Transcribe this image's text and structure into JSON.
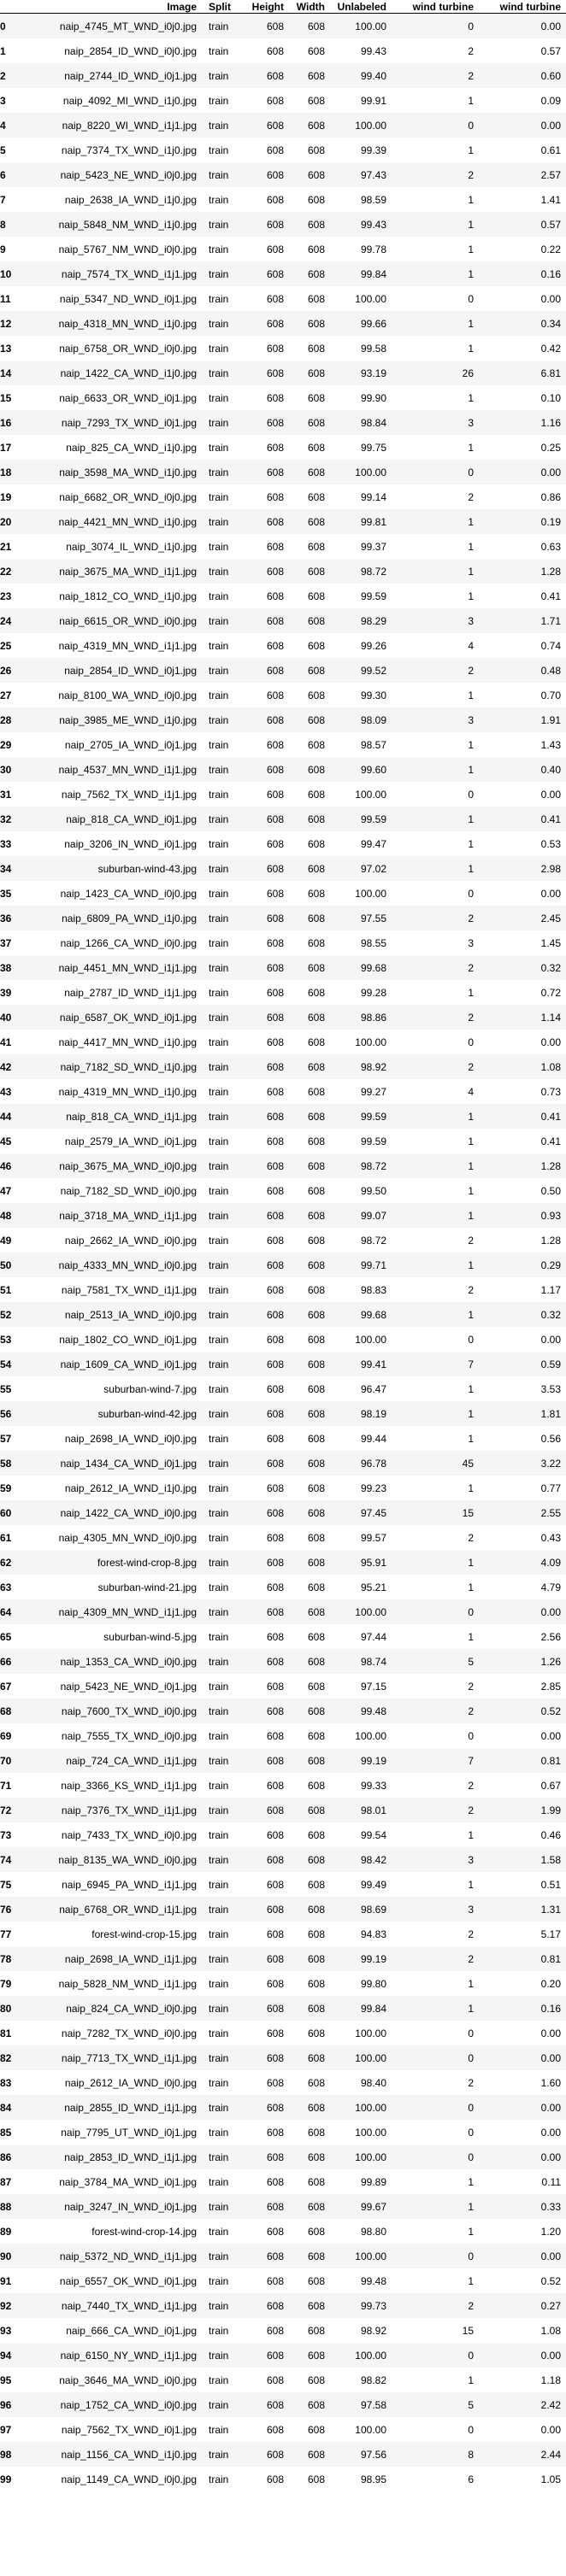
{
  "columns": [
    "",
    "Image",
    "Split",
    "Height",
    "Width",
    "Unlabeled",
    "wind turbine",
    "wind turbine"
  ],
  "rows": [
    [
      "0",
      "naip_4745_MT_WND_i0j0.jpg",
      "train",
      "608",
      "608",
      "100.00",
      "0",
      "0.00"
    ],
    [
      "1",
      "naip_2854_ID_WND_i0j0.jpg",
      "train",
      "608",
      "608",
      "99.43",
      "2",
      "0.57"
    ],
    [
      "2",
      "naip_2744_ID_WND_i0j1.jpg",
      "train",
      "608",
      "608",
      "99.40",
      "2",
      "0.60"
    ],
    [
      "3",
      "naip_4092_MI_WND_i1j0.jpg",
      "train",
      "608",
      "608",
      "99.91",
      "1",
      "0.09"
    ],
    [
      "4",
      "naip_8220_WI_WND_i1j1.jpg",
      "train",
      "608",
      "608",
      "100.00",
      "0",
      "0.00"
    ],
    [
      "5",
      "naip_7374_TX_WND_i1j0.jpg",
      "train",
      "608",
      "608",
      "99.39",
      "1",
      "0.61"
    ],
    [
      "6",
      "naip_5423_NE_WND_i0j0.jpg",
      "train",
      "608",
      "608",
      "97.43",
      "2",
      "2.57"
    ],
    [
      "7",
      "naip_2638_IA_WND_i1j0.jpg",
      "train",
      "608",
      "608",
      "98.59",
      "1",
      "1.41"
    ],
    [
      "8",
      "naip_5848_NM_WND_i1j0.jpg",
      "train",
      "608",
      "608",
      "99.43",
      "1",
      "0.57"
    ],
    [
      "9",
      "naip_5767_NM_WND_i0j0.jpg",
      "train",
      "608",
      "608",
      "99.78",
      "1",
      "0.22"
    ],
    [
      "10",
      "naip_7574_TX_WND_i1j1.jpg",
      "train",
      "608",
      "608",
      "99.84",
      "1",
      "0.16"
    ],
    [
      "11",
      "naip_5347_ND_WND_i0j1.jpg",
      "train",
      "608",
      "608",
      "100.00",
      "0",
      "0.00"
    ],
    [
      "12",
      "naip_4318_MN_WND_i1j0.jpg",
      "train",
      "608",
      "608",
      "99.66",
      "1",
      "0.34"
    ],
    [
      "13",
      "naip_6758_OR_WND_i0j0.jpg",
      "train",
      "608",
      "608",
      "99.58",
      "1",
      "0.42"
    ],
    [
      "14",
      "naip_1422_CA_WND_i1j0.jpg",
      "train",
      "608",
      "608",
      "93.19",
      "26",
      "6.81"
    ],
    [
      "15",
      "naip_6633_OR_WND_i0j1.jpg",
      "train",
      "608",
      "608",
      "99.90",
      "1",
      "0.10"
    ],
    [
      "16",
      "naip_7293_TX_WND_i0j1.jpg",
      "train",
      "608",
      "608",
      "98.84",
      "3",
      "1.16"
    ],
    [
      "17",
      "naip_825_CA_WND_i1j0.jpg",
      "train",
      "608",
      "608",
      "99.75",
      "1",
      "0.25"
    ],
    [
      "18",
      "naip_3598_MA_WND_i1j0.jpg",
      "train",
      "608",
      "608",
      "100.00",
      "0",
      "0.00"
    ],
    [
      "19",
      "naip_6682_OR_WND_i0j0.jpg",
      "train",
      "608",
      "608",
      "99.14",
      "2",
      "0.86"
    ],
    [
      "20",
      "naip_4421_MN_WND_i1j0.jpg",
      "train",
      "608",
      "608",
      "99.81",
      "1",
      "0.19"
    ],
    [
      "21",
      "naip_3074_IL_WND_i1j0.jpg",
      "train",
      "608",
      "608",
      "99.37",
      "1",
      "0.63"
    ],
    [
      "22",
      "naip_3675_MA_WND_i1j1.jpg",
      "train",
      "608",
      "608",
      "98.72",
      "1",
      "1.28"
    ],
    [
      "23",
      "naip_1812_CO_WND_i1j0.jpg",
      "train",
      "608",
      "608",
      "99.59",
      "1",
      "0.41"
    ],
    [
      "24",
      "naip_6615_OR_WND_i0j0.jpg",
      "train",
      "608",
      "608",
      "98.29",
      "3",
      "1.71"
    ],
    [
      "25",
      "naip_4319_MN_WND_i1j1.jpg",
      "train",
      "608",
      "608",
      "99.26",
      "4",
      "0.74"
    ],
    [
      "26",
      "naip_2854_ID_WND_i0j1.jpg",
      "train",
      "608",
      "608",
      "99.52",
      "2",
      "0.48"
    ],
    [
      "27",
      "naip_8100_WA_WND_i0j0.jpg",
      "train",
      "608",
      "608",
      "99.30",
      "1",
      "0.70"
    ],
    [
      "28",
      "naip_3985_ME_WND_i1j0.jpg",
      "train",
      "608",
      "608",
      "98.09",
      "3",
      "1.91"
    ],
    [
      "29",
      "naip_2705_IA_WND_i0j1.jpg",
      "train",
      "608",
      "608",
      "98.57",
      "1",
      "1.43"
    ],
    [
      "30",
      "naip_4537_MN_WND_i1j1.jpg",
      "train",
      "608",
      "608",
      "99.60",
      "1",
      "0.40"
    ],
    [
      "31",
      "naip_7562_TX_WND_i1j1.jpg",
      "train",
      "608",
      "608",
      "100.00",
      "0",
      "0.00"
    ],
    [
      "32",
      "naip_818_CA_WND_i0j1.jpg",
      "train",
      "608",
      "608",
      "99.59",
      "1",
      "0.41"
    ],
    [
      "33",
      "naip_3206_IN_WND_i0j1.jpg",
      "train",
      "608",
      "608",
      "99.47",
      "1",
      "0.53"
    ],
    [
      "34",
      "suburban-wind-43.jpg",
      "train",
      "608",
      "608",
      "97.02",
      "1",
      "2.98"
    ],
    [
      "35",
      "naip_1423_CA_WND_i0j0.jpg",
      "train",
      "608",
      "608",
      "100.00",
      "0",
      "0.00"
    ],
    [
      "36",
      "naip_6809_PA_WND_i1j0.jpg",
      "train",
      "608",
      "608",
      "97.55",
      "2",
      "2.45"
    ],
    [
      "37",
      "naip_1266_CA_WND_i0j0.jpg",
      "train",
      "608",
      "608",
      "98.55",
      "3",
      "1.45"
    ],
    [
      "38",
      "naip_4451_MN_WND_i1j1.jpg",
      "train",
      "608",
      "608",
      "99.68",
      "2",
      "0.32"
    ],
    [
      "39",
      "naip_2787_ID_WND_i1j1.jpg",
      "train",
      "608",
      "608",
      "99.28",
      "1",
      "0.72"
    ],
    [
      "40",
      "naip_6587_OK_WND_i0j1.jpg",
      "train",
      "608",
      "608",
      "98.86",
      "2",
      "1.14"
    ],
    [
      "41",
      "naip_4417_MN_WND_i1j0.jpg",
      "train",
      "608",
      "608",
      "100.00",
      "0",
      "0.00"
    ],
    [
      "42",
      "naip_7182_SD_WND_i1j0.jpg",
      "train",
      "608",
      "608",
      "98.92",
      "2",
      "1.08"
    ],
    [
      "43",
      "naip_4319_MN_WND_i1j0.jpg",
      "train",
      "608",
      "608",
      "99.27",
      "4",
      "0.73"
    ],
    [
      "44",
      "naip_818_CA_WND_i1j1.jpg",
      "train",
      "608",
      "608",
      "99.59",
      "1",
      "0.41"
    ],
    [
      "45",
      "naip_2579_IA_WND_i0j1.jpg",
      "train",
      "608",
      "608",
      "99.59",
      "1",
      "0.41"
    ],
    [
      "46",
      "naip_3675_MA_WND_i0j0.jpg",
      "train",
      "608",
      "608",
      "98.72",
      "1",
      "1.28"
    ],
    [
      "47",
      "naip_7182_SD_WND_i0j0.jpg",
      "train",
      "608",
      "608",
      "99.50",
      "1",
      "0.50"
    ],
    [
      "48",
      "naip_3718_MA_WND_i1j1.jpg",
      "train",
      "608",
      "608",
      "99.07",
      "1",
      "0.93"
    ],
    [
      "49",
      "naip_2662_IA_WND_i0j0.jpg",
      "train",
      "608",
      "608",
      "98.72",
      "2",
      "1.28"
    ],
    [
      "50",
      "naip_4333_MN_WND_i0j0.jpg",
      "train",
      "608",
      "608",
      "99.71",
      "1",
      "0.29"
    ],
    [
      "51",
      "naip_7581_TX_WND_i1j1.jpg",
      "train",
      "608",
      "608",
      "98.83",
      "2",
      "1.17"
    ],
    [
      "52",
      "naip_2513_IA_WND_i0j0.jpg",
      "train",
      "608",
      "608",
      "99.68",
      "1",
      "0.32"
    ],
    [
      "53",
      "naip_1802_CO_WND_i0j1.jpg",
      "train",
      "608",
      "608",
      "100.00",
      "0",
      "0.00"
    ],
    [
      "54",
      "naip_1609_CA_WND_i0j1.jpg",
      "train",
      "608",
      "608",
      "99.41",
      "7",
      "0.59"
    ],
    [
      "55",
      "suburban-wind-7.jpg",
      "train",
      "608",
      "608",
      "96.47",
      "1",
      "3.53"
    ],
    [
      "56",
      "suburban-wind-42.jpg",
      "train",
      "608",
      "608",
      "98.19",
      "1",
      "1.81"
    ],
    [
      "57",
      "naip_2698_IA_WND_i0j0.jpg",
      "train",
      "608",
      "608",
      "99.44",
      "1",
      "0.56"
    ],
    [
      "58",
      "naip_1434_CA_WND_i0j1.jpg",
      "train",
      "608",
      "608",
      "96.78",
      "45",
      "3.22"
    ],
    [
      "59",
      "naip_2612_IA_WND_i1j0.jpg",
      "train",
      "608",
      "608",
      "99.23",
      "1",
      "0.77"
    ],
    [
      "60",
      "naip_1422_CA_WND_i0j0.jpg",
      "train",
      "608",
      "608",
      "97.45",
      "15",
      "2.55"
    ],
    [
      "61",
      "naip_4305_MN_WND_i0j0.jpg",
      "train",
      "608",
      "608",
      "99.57",
      "2",
      "0.43"
    ],
    [
      "62",
      "forest-wind-crop-8.jpg",
      "train",
      "608",
      "608",
      "95.91",
      "1",
      "4.09"
    ],
    [
      "63",
      "suburban-wind-21.jpg",
      "train",
      "608",
      "608",
      "95.21",
      "1",
      "4.79"
    ],
    [
      "64",
      "naip_4309_MN_WND_i1j1.jpg",
      "train",
      "608",
      "608",
      "100.00",
      "0",
      "0.00"
    ],
    [
      "65",
      "suburban-wind-5.jpg",
      "train",
      "608",
      "608",
      "97.44",
      "1",
      "2.56"
    ],
    [
      "66",
      "naip_1353_CA_WND_i0j0.jpg",
      "train",
      "608",
      "608",
      "98.74",
      "5",
      "1.26"
    ],
    [
      "67",
      "naip_5423_NE_WND_i0j1.jpg",
      "train",
      "608",
      "608",
      "97.15",
      "2",
      "2.85"
    ],
    [
      "68",
      "naip_7600_TX_WND_i0j0.jpg",
      "train",
      "608",
      "608",
      "99.48",
      "2",
      "0.52"
    ],
    [
      "69",
      "naip_7555_TX_WND_i0j0.jpg",
      "train",
      "608",
      "608",
      "100.00",
      "0",
      "0.00"
    ],
    [
      "70",
      "naip_724_CA_WND_i1j1.jpg",
      "train",
      "608",
      "608",
      "99.19",
      "7",
      "0.81"
    ],
    [
      "71",
      "naip_3366_KS_WND_i1j1.jpg",
      "train",
      "608",
      "608",
      "99.33",
      "2",
      "0.67"
    ],
    [
      "72",
      "naip_7376_TX_WND_i1j1.jpg",
      "train",
      "608",
      "608",
      "98.01",
      "2",
      "1.99"
    ],
    [
      "73",
      "naip_7433_TX_WND_i0j0.jpg",
      "train",
      "608",
      "608",
      "99.54",
      "1",
      "0.46"
    ],
    [
      "74",
      "naip_8135_WA_WND_i0j0.jpg",
      "train",
      "608",
      "608",
      "98.42",
      "3",
      "1.58"
    ],
    [
      "75",
      "naip_6945_PA_WND_i1j1.jpg",
      "train",
      "608",
      "608",
      "99.49",
      "1",
      "0.51"
    ],
    [
      "76",
      "naip_6768_OR_WND_i1j1.jpg",
      "train",
      "608",
      "608",
      "98.69",
      "3",
      "1.31"
    ],
    [
      "77",
      "forest-wind-crop-15.jpg",
      "train",
      "608",
      "608",
      "94.83",
      "2",
      "5.17"
    ],
    [
      "78",
      "naip_2698_IA_WND_i1j1.jpg",
      "train",
      "608",
      "608",
      "99.19",
      "2",
      "0.81"
    ],
    [
      "79",
      "naip_5828_NM_WND_i1j1.jpg",
      "train",
      "608",
      "608",
      "99.80",
      "1",
      "0.20"
    ],
    [
      "80",
      "naip_824_CA_WND_i0j0.jpg",
      "train",
      "608",
      "608",
      "99.84",
      "1",
      "0.16"
    ],
    [
      "81",
      "naip_7282_TX_WND_i0j0.jpg",
      "train",
      "608",
      "608",
      "100.00",
      "0",
      "0.00"
    ],
    [
      "82",
      "naip_7713_TX_WND_i1j1.jpg",
      "train",
      "608",
      "608",
      "100.00",
      "0",
      "0.00"
    ],
    [
      "83",
      "naip_2612_IA_WND_i0j0.jpg",
      "train",
      "608",
      "608",
      "98.40",
      "2",
      "1.60"
    ],
    [
      "84",
      "naip_2855_ID_WND_i1j1.jpg",
      "train",
      "608",
      "608",
      "100.00",
      "0",
      "0.00"
    ],
    [
      "85",
      "naip_7795_UT_WND_i0j1.jpg",
      "train",
      "608",
      "608",
      "100.00",
      "0",
      "0.00"
    ],
    [
      "86",
      "naip_2853_ID_WND_i1j1.jpg",
      "train",
      "608",
      "608",
      "100.00",
      "0",
      "0.00"
    ],
    [
      "87",
      "naip_3784_MA_WND_i0j1.jpg",
      "train",
      "608",
      "608",
      "99.89",
      "1",
      "0.11"
    ],
    [
      "88",
      "naip_3247_IN_WND_i0j1.jpg",
      "train",
      "608",
      "608",
      "99.67",
      "1",
      "0.33"
    ],
    [
      "89",
      "forest-wind-crop-14.jpg",
      "train",
      "608",
      "608",
      "98.80",
      "1",
      "1.20"
    ],
    [
      "90",
      "naip_5372_ND_WND_i1j1.jpg",
      "train",
      "608",
      "608",
      "100.00",
      "0",
      "0.00"
    ],
    [
      "91",
      "naip_6557_OK_WND_i0j1.jpg",
      "train",
      "608",
      "608",
      "99.48",
      "1",
      "0.52"
    ],
    [
      "92",
      "naip_7440_TX_WND_i1j1.jpg",
      "train",
      "608",
      "608",
      "99.73",
      "2",
      "0.27"
    ],
    [
      "93",
      "naip_666_CA_WND_i0j1.jpg",
      "train",
      "608",
      "608",
      "98.92",
      "15",
      "1.08"
    ],
    [
      "94",
      "naip_6150_NY_WND_i1j1.jpg",
      "train",
      "608",
      "608",
      "100.00",
      "0",
      "0.00"
    ],
    [
      "95",
      "naip_3646_MA_WND_i0j0.jpg",
      "train",
      "608",
      "608",
      "98.82",
      "1",
      "1.18"
    ],
    [
      "96",
      "naip_1752_CA_WND_i0j0.jpg",
      "train",
      "608",
      "608",
      "97.58",
      "5",
      "2.42"
    ],
    [
      "97",
      "naip_7562_TX_WND_i0j1.jpg",
      "train",
      "608",
      "608",
      "100.00",
      "0",
      "0.00"
    ],
    [
      "98",
      "naip_1156_CA_WND_i1j0.jpg",
      "train",
      "608",
      "608",
      "97.56",
      "8",
      "2.44"
    ],
    [
      "99",
      "naip_1149_CA_WND_i0j0.jpg",
      "train",
      "608",
      "608",
      "98.95",
      "6",
      "1.05"
    ]
  ]
}
